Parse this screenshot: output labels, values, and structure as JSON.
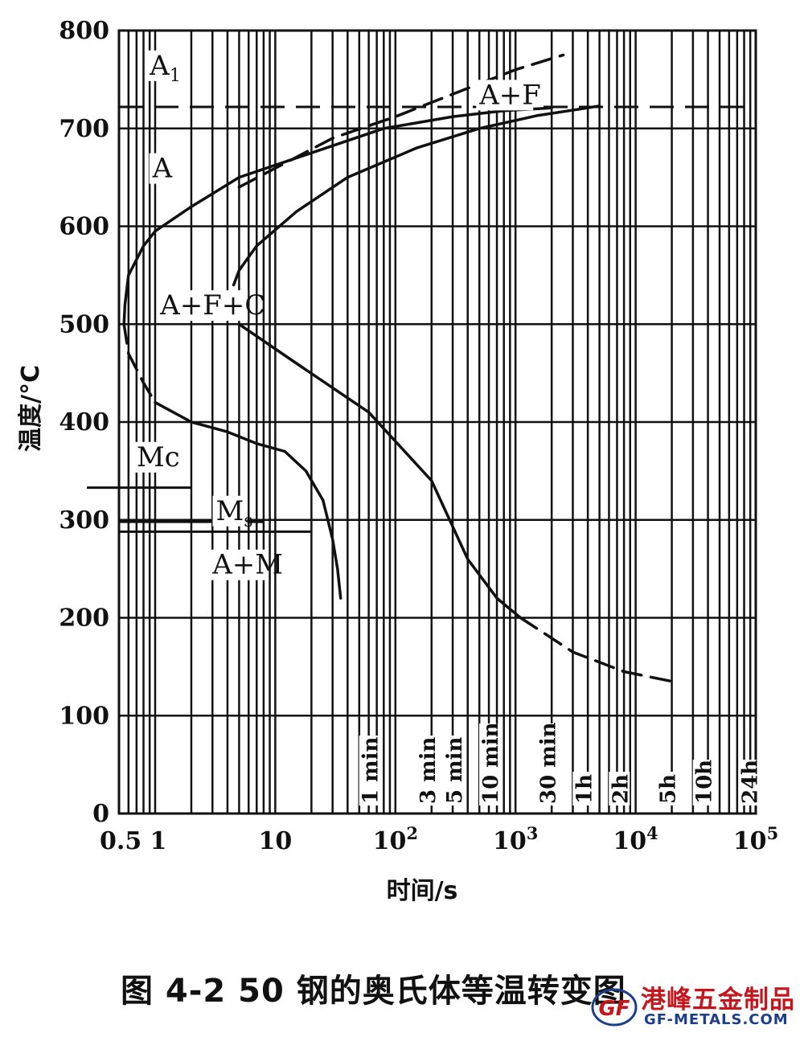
{
  "chart_data": {
    "type": "line",
    "title": "",
    "xlabel": "时间/s",
    "ylabel": "温度/°C",
    "x_scale": "log",
    "xlim": [
      0.5,
      100000
    ],
    "ylim": [
      0,
      800
    ],
    "y_ticks": [
      0,
      100,
      200,
      300,
      400,
      500,
      600,
      700,
      800
    ],
    "x_tick_labels": [
      {
        "label": "0.5",
        "value": 0.5
      },
      {
        "label": "1",
        "value": 1
      },
      {
        "label": "10",
        "value": 10
      },
      {
        "label": "10",
        "sup": "2",
        "value": 100
      },
      {
        "label": "10",
        "sup": "3",
        "value": 1000
      },
      {
        "label": "10",
        "sup": "4",
        "value": 10000
      },
      {
        "label": "10",
        "sup": "5",
        "value": 100000
      }
    ],
    "time_labels": [
      {
        "label": "1 min",
        "value": 60
      },
      {
        "label": "3 min",
        "value": 180
      },
      {
        "label": "5 min",
        "value": 300
      },
      {
        "label": "10 min",
        "value": 600
      },
      {
        "label": "30 min",
        "value": 1800
      },
      {
        "label": "1h",
        "value": 3600
      },
      {
        "label": "2h",
        "value": 7200
      },
      {
        "label": "5h",
        "value": 18000
      },
      {
        "label": "10h",
        "value": 36000
      },
      {
        "label": "24h",
        "value": 86400
      }
    ],
    "region_labels": [
      {
        "text": "A",
        "sub": "1",
        "x": 0.9,
        "y": 755
      },
      {
        "text": "A+F",
        "x": 500,
        "y": 725
      },
      {
        "text": "A",
        "x": 0.95,
        "y": 650
      },
      {
        "text": "A+F+C",
        "x": 1.1,
        "y": 510
      },
      {
        "text": "Mc",
        "x": 0.7,
        "y": 355
      },
      {
        "text": "M",
        "sub": "s",
        "x": 3.2,
        "y": 300
      },
      {
        "text": "A+M",
        "x": 3.0,
        "y": 245
      }
    ],
    "reference_lines": [
      {
        "name": "A1",
        "y": 722,
        "style": "dashed"
      },
      {
        "name": "Mc",
        "y": 333,
        "x_range": [
          0.3,
          2.0
        ]
      },
      {
        "name": "Ms",
        "y": 298,
        "x_range": [
          0.5,
          8
        ]
      },
      {
        "name": "Ms_lower",
        "y": 288,
        "x_range": [
          0.5,
          20
        ]
      }
    ],
    "series": [
      {
        "style": "solid",
        "points": [
          [
            0.55,
            500
          ],
          [
            0.56,
            520
          ],
          [
            0.6,
            550
          ],
          [
            0.8,
            580
          ],
          [
            1.0,
            595
          ],
          [
            2.0,
            620
          ],
          [
            5,
            650
          ],
          [
            20,
            675
          ],
          [
            80,
            700
          ],
          [
            300,
            712
          ],
          [
            800,
            718
          ],
          [
            2000,
            721
          ]
        ]
      },
      {
        "style": "dashed",
        "points": [
          [
            0.55,
            500
          ],
          [
            0.6,
            470
          ],
          [
            0.8,
            440
          ],
          [
            1.0,
            420
          ]
        ]
      },
      {
        "style": "solid",
        "points": [
          [
            1.0,
            420
          ],
          [
            2.0,
            400
          ],
          [
            4,
            390
          ],
          [
            7,
            378
          ],
          [
            12,
            370
          ],
          [
            18,
            350
          ],
          [
            25,
            320
          ],
          [
            30,
            280
          ],
          [
            33,
            250
          ],
          [
            35,
            220
          ]
        ]
      },
      {
        "style": "solid",
        "points": [
          [
            4.5,
            540
          ],
          [
            5,
            555
          ],
          [
            7,
            580
          ],
          [
            15,
            615
          ],
          [
            40,
            650
          ],
          [
            150,
            680
          ],
          [
            500,
            700
          ],
          [
            1500,
            713
          ],
          [
            4000,
            721
          ],
          [
            5000,
            723
          ]
        ]
      },
      {
        "style": "solid",
        "points": [
          [
            5,
            500
          ],
          [
            15,
            460
          ],
          [
            60,
            410
          ],
          [
            200,
            340
          ],
          [
            400,
            260
          ],
          [
            700,
            220
          ],
          [
            1100,
            200
          ]
        ]
      },
      {
        "style": "dashed",
        "points": [
          [
            1100,
            200
          ],
          [
            3000,
            165
          ],
          [
            8000,
            145
          ],
          [
            20000,
            135
          ]
        ]
      },
      {
        "style": "dashed",
        "points": [
          [
            5,
            640
          ],
          [
            30,
            690
          ],
          [
            100,
            712
          ],
          [
            300,
            735
          ],
          [
            1000,
            760
          ],
          [
            2500,
            775
          ]
        ]
      }
    ]
  },
  "caption": "图 4-2   50 钢的奥氏体等温转变图",
  "watermark": {
    "chinese": "港峰五金制品",
    "english": "GF-METALS.COM",
    "logo_text": "GF"
  }
}
